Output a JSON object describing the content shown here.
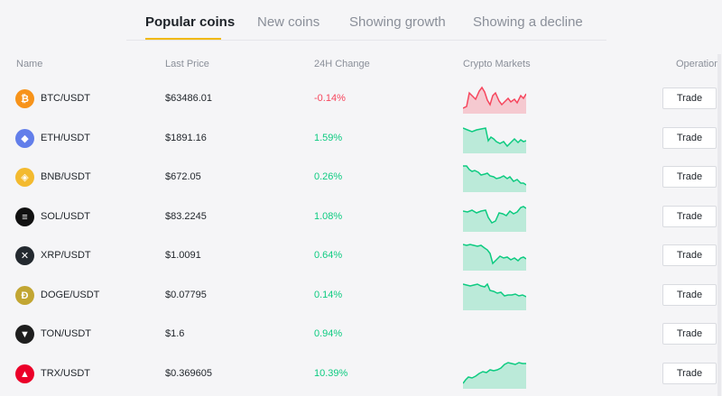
{
  "tabs": [
    {
      "label": "Popular coins",
      "active": true
    },
    {
      "label": "New coins",
      "active": false
    },
    {
      "label": "Showing growth",
      "active": false
    },
    {
      "label": "Showing a decline",
      "active": false
    }
  ],
  "columns": {
    "name": "Name",
    "last_price": "Last Price",
    "change": "24H Change",
    "markets": "Crypto Markets",
    "operation": "Operation"
  },
  "rows": [
    {
      "base": "BTC",
      "quote": "/USDT",
      "price": "$63486.01",
      "change": "-0.14%",
      "trend": "down",
      "icon": "bitcoin-icon",
      "icon_color": "#f7931a",
      "icon_glyph": "₿",
      "action": "Trade"
    },
    {
      "base": "ETH",
      "quote": "/USDT",
      "price": "$1891.16",
      "change": "1.59%",
      "trend": "up",
      "icon": "ethereum-icon",
      "icon_color": "#627eea",
      "icon_glyph": "◆",
      "action": "Trade"
    },
    {
      "base": "BNB",
      "quote": "/USDT",
      "price": "$672.05",
      "change": "0.26%",
      "trend": "up",
      "icon": "bnb-icon",
      "icon_color": "#f3ba2f",
      "icon_glyph": "◈",
      "action": "Trade"
    },
    {
      "base": "SOL",
      "quote": "/USDT",
      "price": "$83.2245",
      "change": "1.08%",
      "trend": "up",
      "icon": "solana-icon",
      "icon_color": "#111111",
      "icon_glyph": "≡",
      "action": "Trade"
    },
    {
      "base": "XRP",
      "quote": "/USDT",
      "price": "$1.0091",
      "change": "0.64%",
      "trend": "up",
      "icon": "xrp-icon",
      "icon_color": "#23292f",
      "icon_glyph": "✕",
      "action": "Trade"
    },
    {
      "base": "DOGE",
      "quote": "/USDT",
      "price": "$0.07795",
      "change": "0.14%",
      "trend": "up",
      "icon": "dogecoin-icon",
      "icon_color": "#c2a633",
      "icon_glyph": "Ð",
      "action": "Trade"
    },
    {
      "base": "TON",
      "quote": "/USDT",
      "price": "$1.6",
      "change": "0.94%",
      "trend": "up",
      "icon": "toncoin-icon",
      "icon_color": "#1e1e1e",
      "icon_glyph": "▼",
      "action": "Trade"
    },
    {
      "base": "TRX",
      "quote": "/USDT",
      "price": "$0.369605",
      "change": "10.39%",
      "trend": "up",
      "icon": "tron-icon",
      "icon_color": "#eb0029",
      "icon_glyph": "▲",
      "action": "Trade"
    }
  ],
  "colors": {
    "up": "#0ecb81",
    "down": "#f6465d",
    "accent": "#f0b90b"
  }
}
